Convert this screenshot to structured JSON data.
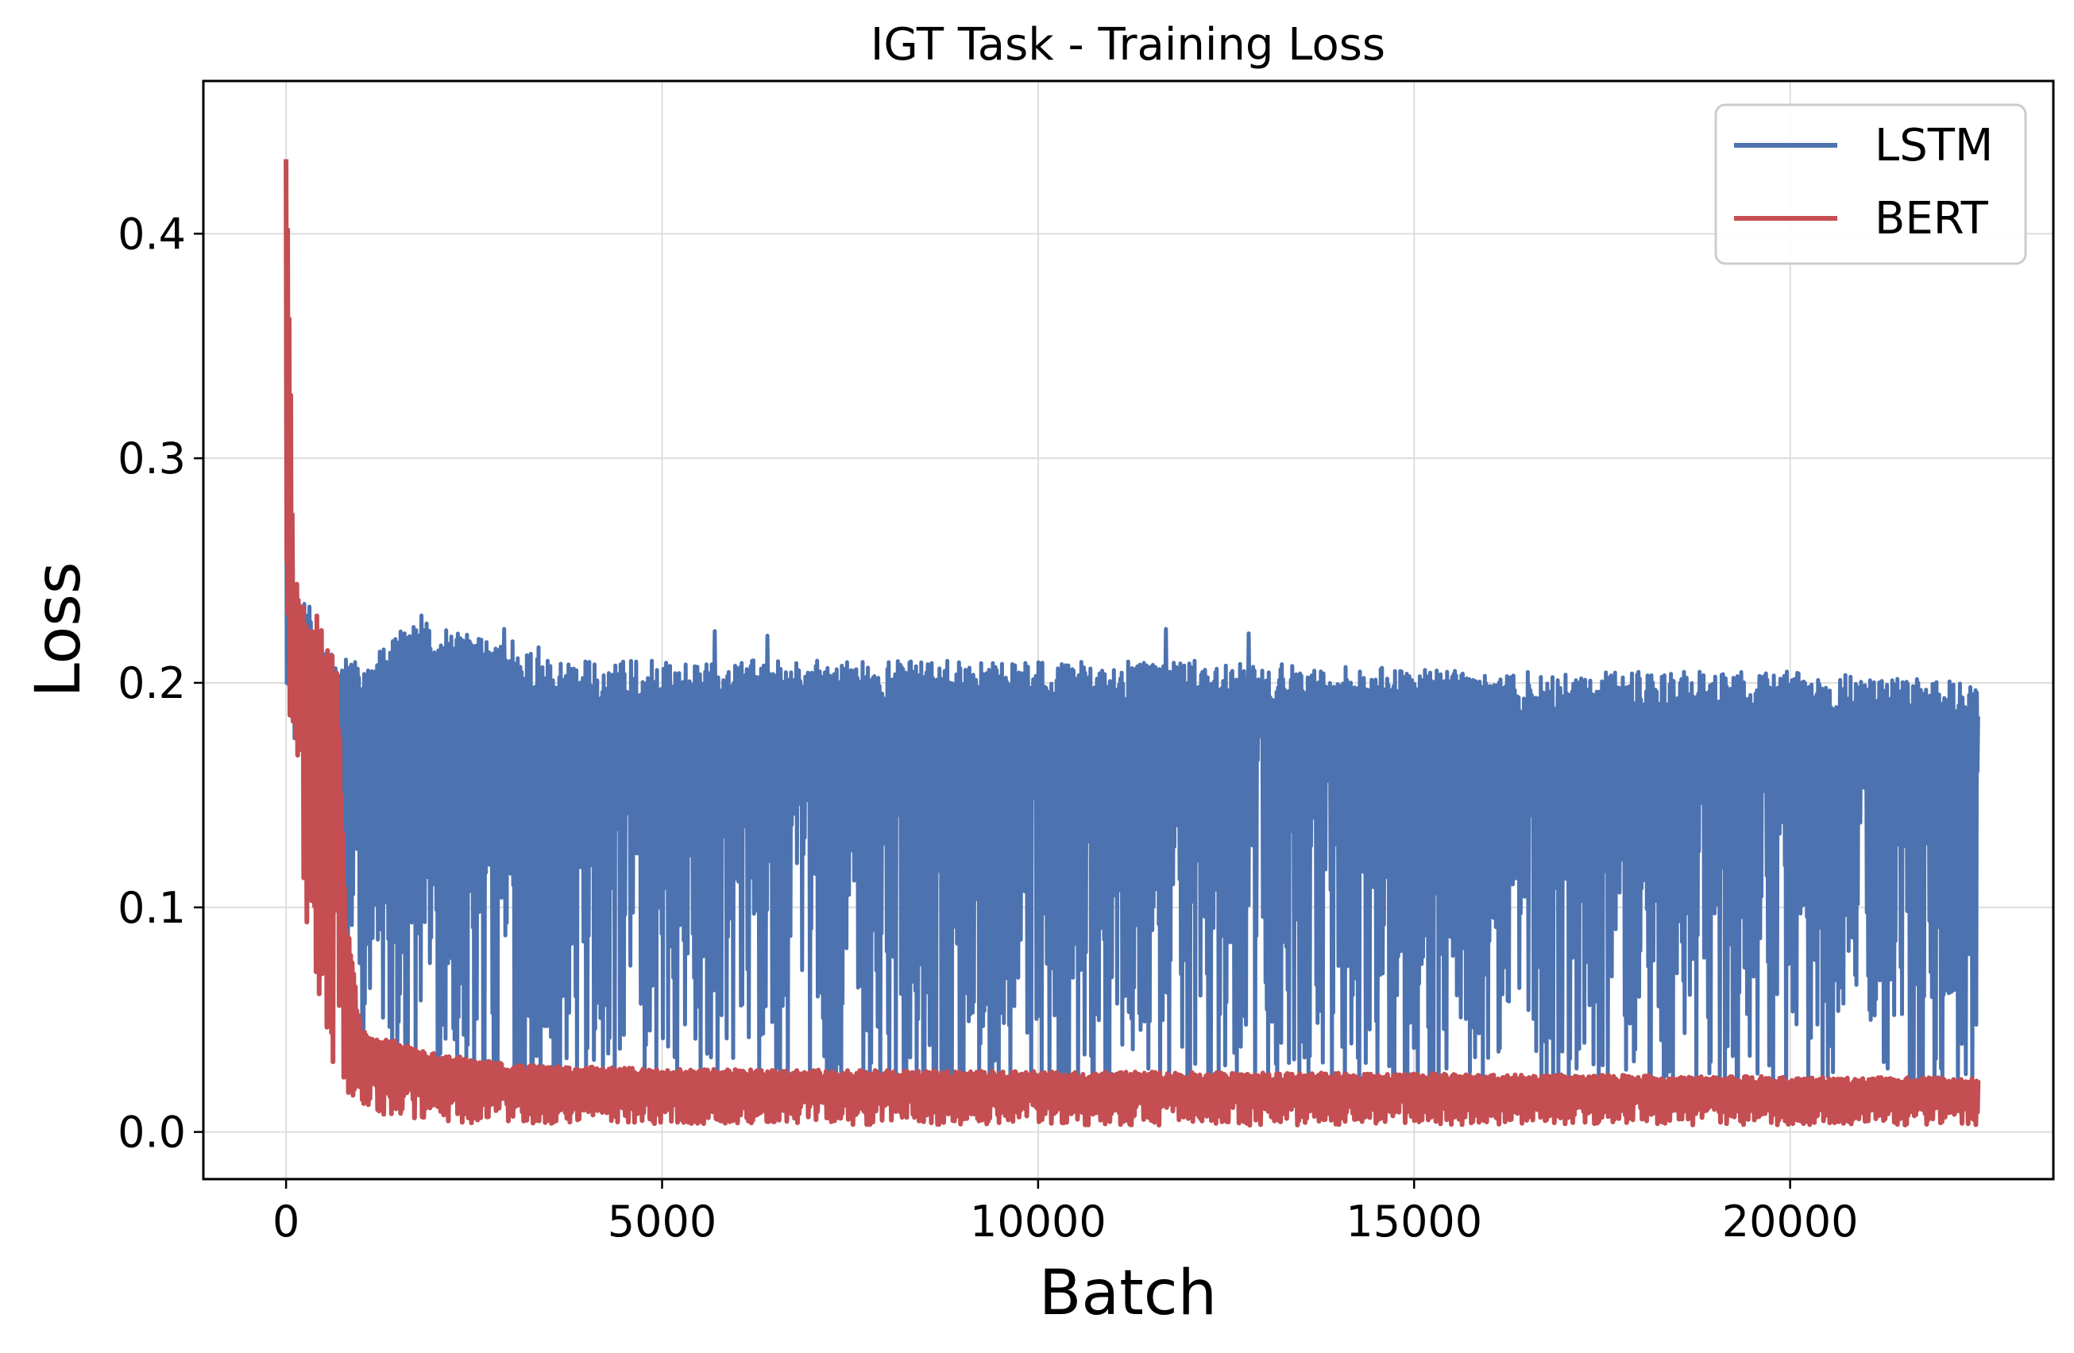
{
  "chart_data": {
    "type": "line",
    "title": "IGT Task - Training Loss",
    "xlabel": "Batch",
    "ylabel": "Loss",
    "xlim": [
      -1100,
      23500
    ],
    "ylim": [
      -0.021,
      0.468
    ],
    "xticks": [
      0,
      5000,
      10000,
      15000,
      20000
    ],
    "xtick_labels": [
      "0",
      "5000",
      "10000",
      "15000",
      "20000"
    ],
    "yticks": [
      0.0,
      0.1,
      0.2,
      0.3,
      0.4
    ],
    "ytick_labels": [
      "0.0",
      "0.1",
      "0.2",
      "0.3",
      "0.4"
    ],
    "grid": true,
    "legend_position": "top-right",
    "series": [
      {
        "name": "LSTM",
        "color": "#4c72b0",
        "x_range": [
          0,
          22500
        ],
        "points": [
          [
            0,
            0.37
          ],
          [
            50,
            0.28
          ],
          [
            150,
            0.24
          ],
          [
            300,
            0.235
          ],
          [
            600,
            0.215
          ],
          [
            1000,
            0.21
          ],
          [
            1800,
            0.23
          ],
          [
            4000,
            0.21
          ],
          [
            8000,
            0.21
          ],
          [
            12000,
            0.21
          ],
          [
            16000,
            0.205
          ],
          [
            20000,
            0.205
          ],
          [
            22500,
            0.2
          ]
        ],
        "lower_points": [
          [
            0,
            0.2
          ],
          [
            300,
            0.12
          ],
          [
            800,
            0.06
          ],
          [
            1200,
            0.03
          ],
          [
            2000,
            0.015
          ],
          [
            5000,
            0.012
          ],
          [
            10000,
            0.01
          ],
          [
            15000,
            0.01
          ],
          [
            22500,
            0.01
          ]
        ],
        "notable_peaks": [
          [
            1800,
            0.23
          ],
          [
            2900,
            0.224
          ],
          [
            5700,
            0.223
          ],
          [
            6400,
            0.221
          ],
          [
            11700,
            0.224
          ],
          [
            12800,
            0.222
          ]
        ]
      },
      {
        "name": "BERT",
        "color": "#c44e52",
        "x_range": [
          0,
          22500
        ],
        "points": [
          [
            0,
            0.445
          ],
          [
            30,
            0.41
          ],
          [
            100,
            0.25
          ],
          [
            300,
            0.23
          ],
          [
            500,
            0.235
          ],
          [
            700,
            0.2
          ],
          [
            800,
            0.1
          ],
          [
            1000,
            0.045
          ],
          [
            2000,
            0.035
          ],
          [
            3000,
            0.03
          ],
          [
            5000,
            0.028
          ],
          [
            10000,
            0.027
          ],
          [
            15000,
            0.026
          ],
          [
            22500,
            0.024
          ]
        ],
        "lower_points": [
          [
            0,
            0.2
          ],
          [
            300,
            0.07
          ],
          [
            600,
            0.03
          ],
          [
            900,
            0.01
          ],
          [
            2000,
            0.004
          ],
          [
            10000,
            0.003
          ],
          [
            22500,
            0.003
          ]
        ]
      }
    ]
  }
}
